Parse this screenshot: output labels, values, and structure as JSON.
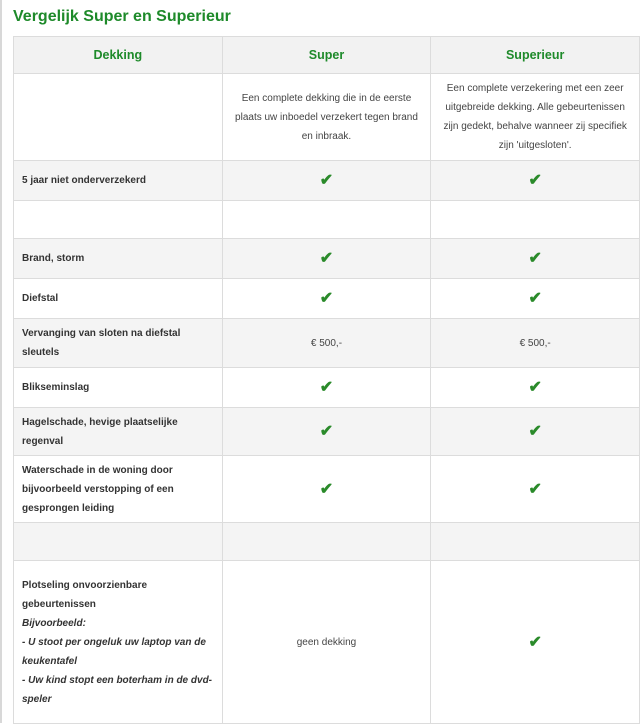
{
  "title": "Vergelijk Super en Superieur",
  "headers": [
    "Dekking",
    "Super",
    "Superieur"
  ],
  "descriptions": {
    "super": "Een complete dekking die in de eerste plaats uw inboedel verzekert tegen brand en inbraak.",
    "superieur": "Een complete verzekering met een zeer uitgebreide dekking. Alle gebeurtenissen zijn gedekt, behalve wanneer zij specifiek zijn 'uitgesloten'."
  },
  "rows": [
    {
      "label": "5 jaar niet onderverzekerd",
      "super": "✔",
      "superieur": "✔"
    },
    {
      "label": "",
      "super": "",
      "superieur": ""
    },
    {
      "label": "Brand, storm",
      "super": "✔",
      "superieur": "✔"
    },
    {
      "label": "Diefstal",
      "super": "✔",
      "superieur": "✔"
    },
    {
      "label": "Vervanging van sloten na diefstal sleutels",
      "super": "€ 500,-",
      "superieur": "€ 500,-"
    },
    {
      "label": "Blikseminslag",
      "super": "✔",
      "superieur": "✔"
    },
    {
      "label": "Hagelschade, hevige plaatselijke regenval",
      "super": "✔",
      "superieur": "✔"
    },
    {
      "label": "Waterschade in de woning door bijvoorbeeld verstopping of een gesprongen leiding",
      "super": "✔",
      "superieur": "✔"
    },
    {
      "label": "",
      "super": "",
      "superieur": ""
    }
  ],
  "last": {
    "label": "Plotseling onvoorzienbare gebeurtenissen",
    "example_title": "Bijvoorbeeld:",
    "example1": "- U stoot per ongeluk uw laptop van de keukentafel",
    "example2": "- Uw kind stopt een boterham in de dvd-speler",
    "super": "geen dekking",
    "superieur": "✔"
  },
  "colors": {
    "accent": "#1e8a2a",
    "check": "#2a8a2a"
  },
  "icons": {
    "check": "check-icon"
  }
}
